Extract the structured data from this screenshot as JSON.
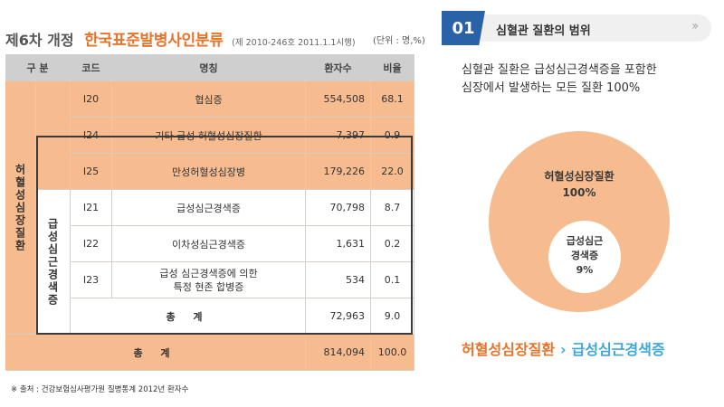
{
  "header": {
    "prefix": "제6차 개정",
    "title": "한국표준발병사인분류",
    "subtitle": "(제 2010-246호 2011.1.1시행)",
    "unit_note": "(단위 : 명,%)"
  },
  "table": {
    "columns": {
      "category": "구 분",
      "code": "코드",
      "name": "명칭",
      "patients": "환자수",
      "ratio": "비율"
    },
    "group_label": "허혈성심장질환",
    "subgroup_label": "급성심근경색증",
    "rows": [
      {
        "code": "I20",
        "name": "협심증",
        "patients": "554,508",
        "ratio": "68.1"
      },
      {
        "code": "I24",
        "name": "기타 급성 허혈성심장질환",
        "patients": "7,397",
        "ratio": "0.9"
      },
      {
        "code": "I25",
        "name": "만성허혈성심장병",
        "patients": "179,226",
        "ratio": "22.0"
      },
      {
        "code": "I21",
        "name": "급성심근경색증",
        "patients": "70,798",
        "ratio": "8.7"
      },
      {
        "code": "I22",
        "name": "이차성심근경색증",
        "patients": "1,631",
        "ratio": "0.2"
      },
      {
        "code": "I23",
        "name_line1": "급성 심근경색증에 의한",
        "name_line2": "특정 현존 합병증",
        "patients": "534",
        "ratio": "0.1"
      }
    ],
    "subtotal": {
      "label": "총 계",
      "patients": "72,963",
      "ratio": "9.0"
    },
    "total": {
      "label": "총 계",
      "patients": "814,094",
      "ratio": "100.0"
    }
  },
  "source_note": "※ 출처 : 건강보험심사평가원 질병통계 2012년 환자수",
  "section": {
    "number": "01",
    "title": "심혈관 질환의 범위",
    "description_line1": "심혈관 질환은 급성심근경색증을 포함한",
    "description_line2": "심장에서 발생하는 모든 질환 100%"
  },
  "diagram": {
    "outer_label": "허혈성심장질환",
    "outer_pct": "100%",
    "inner_label_line1": "급성심근",
    "inner_label_line2": "경색증",
    "inner_pct": "9%",
    "relation_from": "허혈성심장질환",
    "relation_arrow": "›",
    "relation_to": "급성심근경색증"
  },
  "colors": {
    "accent_orange": "#e8732a",
    "table_orange": "#f6bb8f",
    "header_gray": "#cfcfcf",
    "section_blue": "#2a62a8",
    "relation_blue": "#3fa7d8"
  },
  "icons": {
    "section_chevron": "double-chevron-right-icon"
  }
}
